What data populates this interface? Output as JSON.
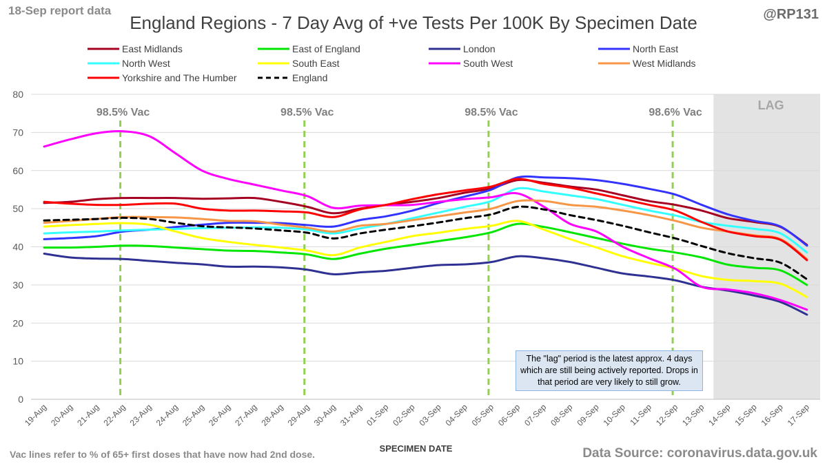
{
  "header": {
    "report_label": "18-Sep report data",
    "handle": "@RP131"
  },
  "footer": {
    "vac_note": "Vac lines refer to % of 65+ first doses that have now had 2nd dose.",
    "source": "Data Source: coronavirus.data.gov.uk"
  },
  "lag_note": "The \"lag\" period is the latest approx. 4 days which are still being actively reported.  Drops in that period are very likely to still grow.",
  "colors": {
    "grid": "#d9d9d9",
    "lag_shade": "#e3e3e3",
    "vac_line": "#92d050"
  },
  "chart_data": {
    "type": "line",
    "title": "England Regions - 7 Day Avg of +ve Tests Per 100K By Specimen Date",
    "xlabel": "SPECIMEN DATE",
    "ylabel": "",
    "ylim": [
      0,
      80
    ],
    "yticks": [
      0,
      10,
      20,
      30,
      40,
      50,
      60,
      70,
      80
    ],
    "grid": true,
    "legend_position": "top",
    "categories": [
      "19-Aug",
      "20-Aug",
      "21-Aug",
      "22-Aug",
      "23-Aug",
      "24-Aug",
      "25-Aug",
      "26-Aug",
      "27-Aug",
      "28-Aug",
      "29-Aug",
      "30-Aug",
      "31-Aug",
      "01-Sep",
      "02-Sep",
      "03-Sep",
      "04-Sep",
      "05-Sep",
      "06-Sep",
      "07-Sep",
      "08-Sep",
      "09-Sep",
      "10-Sep",
      "11-Sep",
      "12-Sep",
      "13-Sep",
      "14-Sep",
      "15-Sep",
      "16-Sep",
      "17-Sep"
    ],
    "lag_region": {
      "label": "LAG",
      "from": "14-Sep",
      "to": "17-Sep"
    },
    "vac_lines": [
      {
        "at": "22-Aug",
        "label": "98.5% Vac"
      },
      {
        "at": "29-Aug",
        "label": "98.5% Vac"
      },
      {
        "at": "05-Sep",
        "label": "98.5% Vac"
      },
      {
        "at": "12-Sep",
        "label": "98.6% Vac"
      }
    ],
    "series": [
      {
        "name": "East Midlands",
        "color": "#a50021",
        "dashed": false,
        "values": [
          51.5,
          51.8,
          52.5,
          52.8,
          52.8,
          52.8,
          52.6,
          52.7,
          52.8,
          51.8,
          50.5,
          48.8,
          50.0,
          51.0,
          51.8,
          52.8,
          54.2,
          55.3,
          57.5,
          56.8,
          55.8,
          55.0,
          53.5,
          52.0,
          51.0,
          49.5,
          47.5,
          46.5,
          45.2,
          40.5
        ]
      },
      {
        "name": "East of England",
        "color": "#00e600",
        "dashed": false,
        "values": [
          39.8,
          39.8,
          40.0,
          40.3,
          40.2,
          39.8,
          39.4,
          39.0,
          38.9,
          38.5,
          38.0,
          36.8,
          38.2,
          39.5,
          40.5,
          41.5,
          42.5,
          43.8,
          46.0,
          45.2,
          43.8,
          42.3,
          40.8,
          39.5,
          38.5,
          37.2,
          35.3,
          34.5,
          33.8,
          30.0
        ]
      },
      {
        "name": "London",
        "color": "#2e3192",
        "dashed": false,
        "values": [
          38.2,
          37.2,
          36.9,
          36.8,
          36.3,
          35.8,
          35.4,
          34.8,
          34.8,
          34.6,
          34.0,
          32.8,
          33.3,
          33.7,
          34.5,
          35.2,
          35.4,
          36.0,
          37.5,
          37.0,
          36.0,
          34.5,
          33.0,
          32.2,
          31.2,
          29.5,
          28.5,
          27.2,
          25.5,
          22.2
        ]
      },
      {
        "name": "North East",
        "color": "#3333ff",
        "dashed": false,
        "values": [
          42.0,
          42.3,
          42.8,
          44.0,
          44.5,
          45.2,
          45.8,
          46.3,
          46.3,
          46.2,
          45.7,
          45.3,
          47.0,
          48.0,
          49.5,
          51.5,
          53.2,
          55.0,
          58.2,
          58.2,
          58.0,
          57.5,
          56.5,
          55.2,
          53.7,
          51.0,
          48.5,
          46.8,
          45.3,
          40.3
        ]
      },
      {
        "name": "North West",
        "color": "#33ffff",
        "dashed": false,
        "values": [
          43.5,
          43.8,
          44.0,
          44.3,
          44.5,
          44.7,
          44.9,
          45.0,
          45.1,
          45.0,
          44.5,
          43.5,
          44.8,
          46.0,
          47.5,
          49.0,
          50.5,
          52.0,
          55.3,
          54.5,
          53.5,
          52.5,
          51.0,
          49.5,
          48.2,
          46.5,
          45.5,
          44.7,
          43.5,
          38.5
        ]
      },
      {
        "name": "South East",
        "color": "#ffff00",
        "dashed": false,
        "values": [
          45.3,
          45.7,
          46.0,
          46.2,
          45.8,
          44.0,
          42.3,
          41.3,
          40.5,
          39.8,
          39.0,
          37.8,
          39.8,
          41.3,
          42.8,
          43.7,
          44.7,
          45.5,
          46.8,
          44.5,
          42.0,
          39.8,
          37.5,
          35.8,
          34.3,
          32.3,
          31.3,
          31.0,
          30.3,
          26.8
        ]
      },
      {
        "name": "South West",
        "color": "#ff00ff",
        "dashed": false,
        "values": [
          66.3,
          68.2,
          69.8,
          70.3,
          69.0,
          64.5,
          60.0,
          57.8,
          56.3,
          54.8,
          53.3,
          50.2,
          50.8,
          50.9,
          51.0,
          51.8,
          52.5,
          53.0,
          54.0,
          50.5,
          46.0,
          44.0,
          40.0,
          37.0,
          34.2,
          29.5,
          28.8,
          27.8,
          26.0,
          23.5
        ]
      },
      {
        "name": "West Midlands",
        "color": "#f79646",
        "dashed": false,
        "values": [
          46.3,
          46.8,
          47.3,
          47.8,
          47.8,
          47.7,
          47.3,
          46.8,
          46.7,
          45.8,
          45.0,
          44.0,
          45.5,
          46.0,
          47.0,
          48.0,
          49.0,
          50.0,
          52.0,
          52.0,
          51.0,
          50.5,
          49.5,
          48.3,
          46.8,
          45.0,
          44.0,
          43.0,
          42.0,
          36.8
        ]
      },
      {
        "name": "Yorkshire and The Humber",
        "color": "#ff0000",
        "dashed": false,
        "values": [
          51.8,
          51.3,
          51.0,
          51.0,
          51.3,
          51.3,
          50.0,
          49.5,
          49.5,
          49.3,
          49.0,
          47.8,
          49.8,
          51.0,
          52.5,
          53.8,
          54.8,
          55.8,
          57.8,
          56.5,
          55.5,
          54.0,
          52.5,
          51.0,
          49.5,
          46.5,
          44.0,
          42.8,
          41.8,
          36.5
        ]
      },
      {
        "name": "England",
        "color": "#000000",
        "dashed": true,
        "values": [
          46.9,
          47.1,
          47.3,
          47.6,
          47.3,
          46.3,
          45.4,
          45.1,
          44.8,
          44.3,
          43.7,
          42.2,
          43.5,
          44.5,
          45.4,
          46.4,
          47.5,
          48.5,
          50.5,
          49.8,
          48.3,
          47.0,
          45.5,
          43.8,
          42.2,
          40.2,
          38.3,
          37.0,
          35.8,
          31.5
        ]
      }
    ]
  }
}
